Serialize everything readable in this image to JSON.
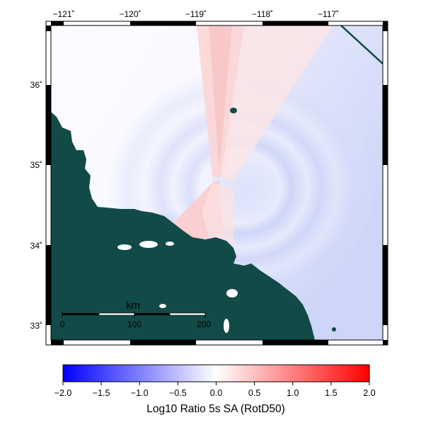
{
  "map": {
    "lon_ticks": [
      "−121˚",
      "−120˚",
      "−119˚",
      "−118˚",
      "−117˚"
    ],
    "lat_ticks": [
      "36˚",
      "35˚",
      "34˚",
      "33˚"
    ],
    "land_color": "#124a47",
    "scale_bar": {
      "unit": "km",
      "labels": [
        "0",
        "100",
        "200"
      ]
    }
  },
  "colorbar": {
    "title": "Log10 Ratio 5s SA (RotD50)",
    "tick_labels": [
      "−2.0",
      "−1.5",
      "−1.0",
      "−0.5",
      "0.0",
      "0.5",
      "1.0",
      "1.5",
      "2.0"
    ],
    "range": [
      -2.0,
      2.0
    ],
    "colors": {
      "low": "#0000ff",
      "mid": "#ffffff",
      "high": "#ff0000"
    }
  }
}
